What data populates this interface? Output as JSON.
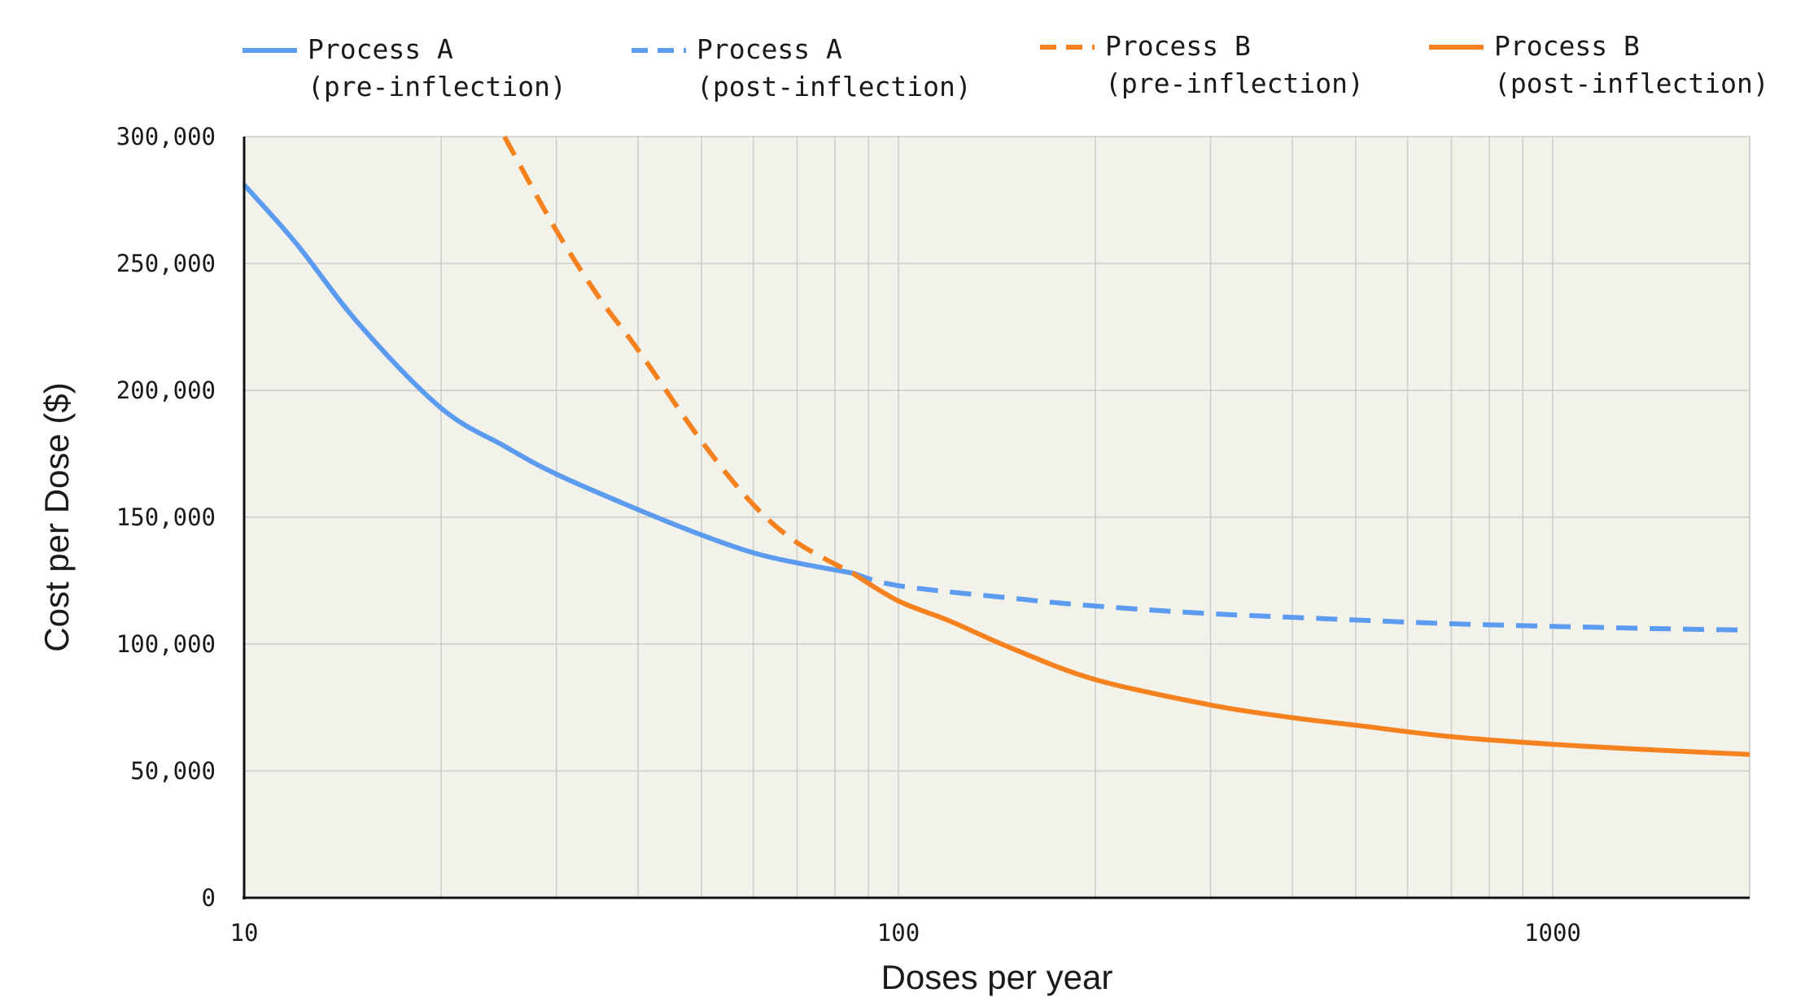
{
  "chart_data": {
    "type": "line",
    "title": "",
    "xlabel": "Doses per year",
    "ylabel": "Cost per Dose ($)",
    "x_scale": "log",
    "xlim": [
      10,
      2000
    ],
    "ylim": [
      0,
      300000
    ],
    "grid": true,
    "x_ticks": [
      10,
      100,
      1000
    ],
    "x_tick_labels": [
      "10",
      "100",
      "1000"
    ],
    "y_ticks": [
      0,
      50000,
      100000,
      150000,
      200000,
      250000,
      300000
    ],
    "y_tick_labels": [
      "0",
      "50,000",
      "100,000",
      "150,000",
      "200,000",
      "250,000",
      "300,000"
    ],
    "legend_position": "top",
    "colors": {
      "process_a": "#5b9bf0",
      "process_b": "#f5821f",
      "plot_bg": "#f3f2ea",
      "grid": "#cccccc",
      "axis": "#111111"
    },
    "series": [
      {
        "name": "Process A (pre-inflection)",
        "legend_line1": "Process A",
        "legend_line2": "(pre-inflection)",
        "color": "#5b9bf0",
        "style": "solid",
        "x": [
          10,
          12,
          15,
          20,
          25,
          30,
          40,
          50,
          60,
          70,
          85
        ],
        "y": [
          281000,
          258000,
          226000,
          193000,
          178000,
          167000,
          153000,
          143000,
          136000,
          132000,
          128000
        ]
      },
      {
        "name": "Process A (post-inflection)",
        "legend_line1": "Process A",
        "legend_line2": "(post-inflection)",
        "color": "#5b9bf0",
        "style": "dashed",
        "x": [
          85,
          100,
          150,
          200,
          300,
          500,
          700,
          1000,
          1500,
          2000
        ],
        "y": [
          128000,
          123000,
          118000,
          115000,
          112000,
          109500,
          108000,
          107000,
          106000,
          105500
        ]
      },
      {
        "name": "Process B (pre-inflection)",
        "legend_line1": "Process B",
        "legend_line2": "(pre-inflection)",
        "color": "#f5821f",
        "style": "dashed",
        "x": [
          25,
          30,
          35,
          40,
          50,
          60,
          70,
          85
        ],
        "y": [
          300000,
          263000,
          236000,
          216000,
          180000,
          155000,
          140000,
          128000
        ]
      },
      {
        "name": "Process B (post-inflection)",
        "legend_line1": "Process B",
        "legend_line2": "(post-inflection)",
        "color": "#f5821f",
        "style": "solid",
        "x": [
          85,
          100,
          120,
          150,
          200,
          300,
          400,
          500,
          700,
          1000,
          1500,
          2000
        ],
        "y": [
          128000,
          117000,
          109000,
          98000,
          86000,
          76000,
          71000,
          68000,
          63500,
          60500,
          58000,
          56500
        ]
      }
    ]
  }
}
